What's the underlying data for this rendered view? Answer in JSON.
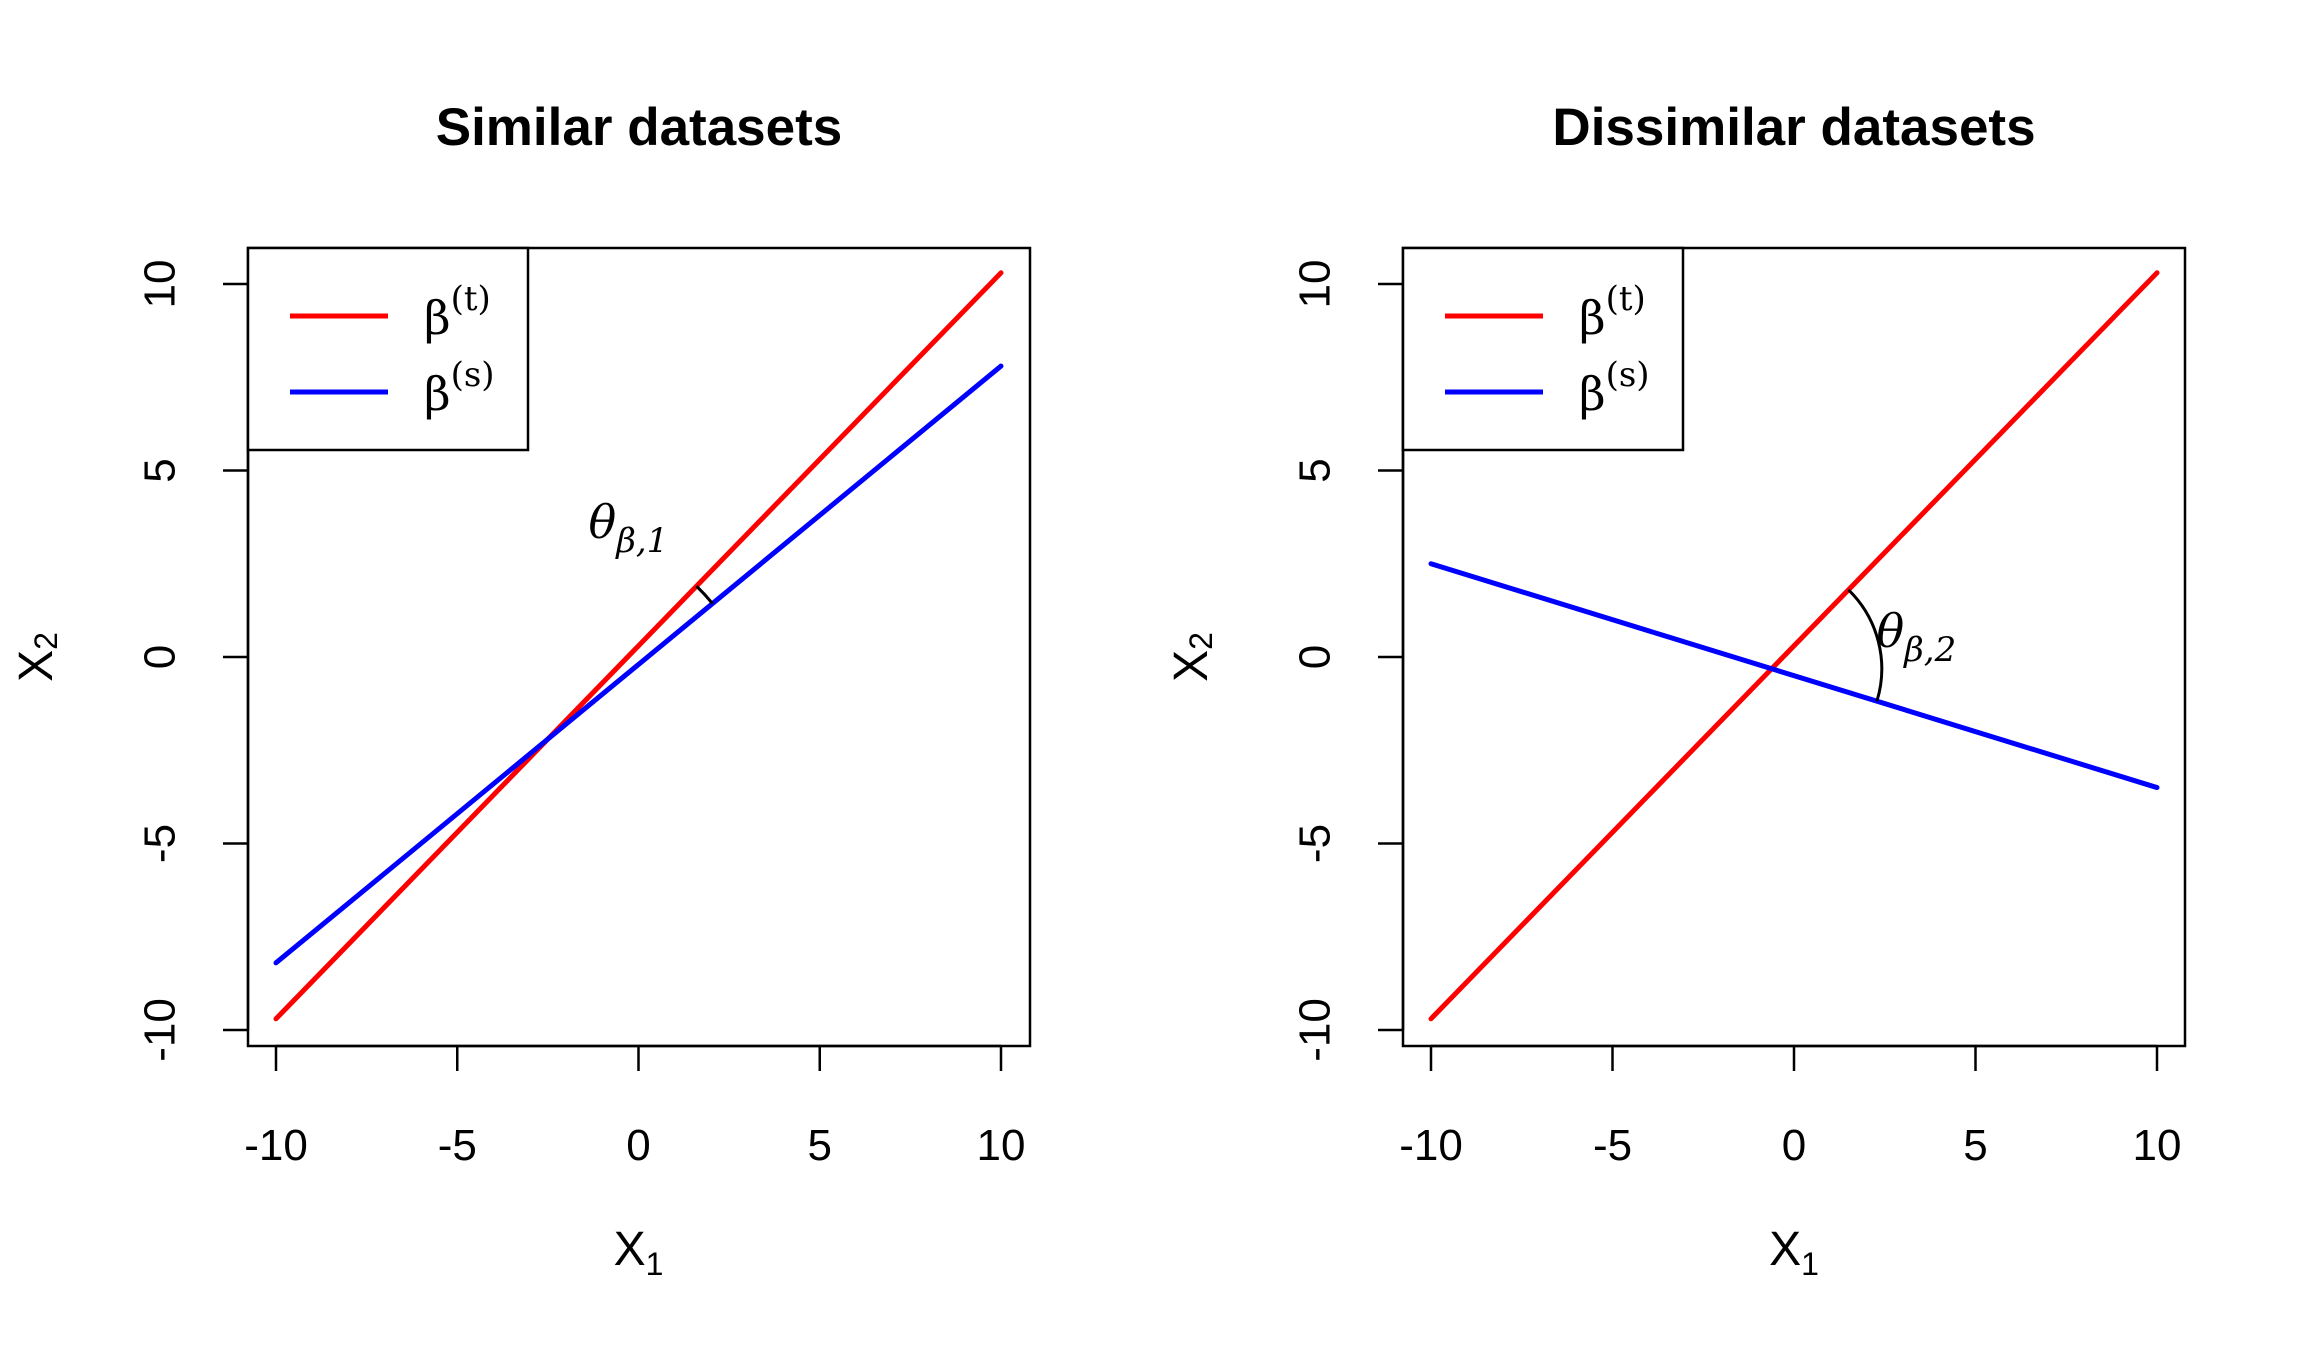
{
  "chart_data": [
    {
      "type": "line",
      "title": "Similar datasets",
      "xlabel": "X",
      "xlabel_sub": "1",
      "ylabel": "X",
      "ylabel_sub": "2",
      "xlim": [
        -10,
        10
      ],
      "ylim": [
        -10,
        10
      ],
      "x_ticks": [
        -10,
        -5,
        0,
        5,
        10
      ],
      "y_ticks": [
        -10,
        -5,
        0,
        5,
        10
      ],
      "legend_position": "top-left",
      "series": [
        {
          "name": "β(t)",
          "name_base": "β",
          "name_sup": "(t)",
          "color": "#ff0000",
          "x": [
            -10,
            10
          ],
          "y": [
            -9.7,
            10.3
          ]
        },
        {
          "name": "β(s)",
          "name_base": "β",
          "name_sup": "(s)",
          "color": "#0000ff",
          "x": [
            -10,
            10
          ],
          "y": [
            -8.2,
            7.8
          ]
        }
      ],
      "annotation": {
        "text": "θβ,1",
        "base": "θ",
        "sub": "β,1",
        "x_anchor": 1.6,
        "type": "arc"
      }
    },
    {
      "type": "line",
      "title": "Dissimilar datasets",
      "xlabel": "X",
      "xlabel_sub": "1",
      "ylabel": "X",
      "ylabel_sub": "2",
      "xlim": [
        -10,
        10
      ],
      "ylim": [
        -10,
        10
      ],
      "x_ticks": [
        -10,
        -5,
        0,
        5,
        10
      ],
      "y_ticks": [
        -10,
        -5,
        0,
        5,
        10
      ],
      "legend_position": "top-left",
      "series": [
        {
          "name": "β(t)",
          "name_base": "β",
          "name_sup": "(t)",
          "color": "#ff0000",
          "x": [
            -10,
            10
          ],
          "y": [
            -9.7,
            10.3
          ]
        },
        {
          "name": "β(s)",
          "name_base": "β",
          "name_sup": "(s)",
          "color": "#0000ff",
          "x": [
            -10,
            10
          ],
          "y": [
            2.5,
            -3.5
          ]
        }
      ],
      "annotation": {
        "text": "θβ,2",
        "base": "θ",
        "sub": "β,2",
        "x_anchor": 1.5,
        "type": "arc"
      }
    }
  ]
}
